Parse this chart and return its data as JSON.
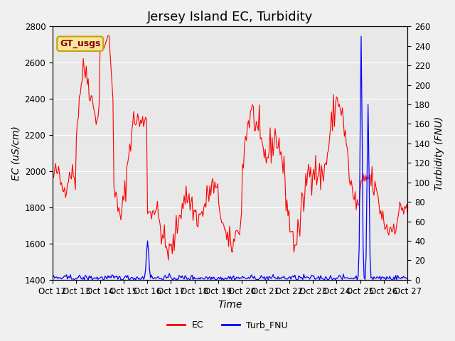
{
  "title": "Jersey Island EC, Turbidity",
  "xlabel": "Time",
  "ylabel_left": "EC (uS/cm)",
  "ylabel_right": "Turbidity (FNU)",
  "ec_ylim": [
    1400,
    2800
  ],
  "turb_ylim": [
    0,
    260
  ],
  "ec_yticks": [
    1400,
    1600,
    1800,
    2000,
    2200,
    2400,
    2600,
    2800
  ],
  "turb_yticks": [
    0,
    20,
    40,
    60,
    80,
    100,
    120,
    140,
    160,
    180,
    200,
    220,
    240,
    260
  ],
  "x_tick_labels": [
    "Oct 12",
    "Oct 13",
    "Oct 14",
    "Oct 15",
    "Oct 16",
    "Oct 17",
    "Oct 18",
    "Oct 19",
    "Oct 20",
    "Oct 21",
    "Oct 22",
    "Oct 23",
    "Oct 24",
    "Oct 25",
    "Oct 26",
    "Oct 27"
  ],
  "ec_color": "red",
  "turb_color": "blue",
  "background_color": "#f0f0f0",
  "plot_bg_color": "#e8e8e8",
  "legend_box_color": "#f5e6a0",
  "legend_box_border": "#c8a000",
  "legend_label": "GT_usgs",
  "title_fontsize": 13,
  "axis_label_fontsize": 10,
  "tick_fontsize": 8.5
}
